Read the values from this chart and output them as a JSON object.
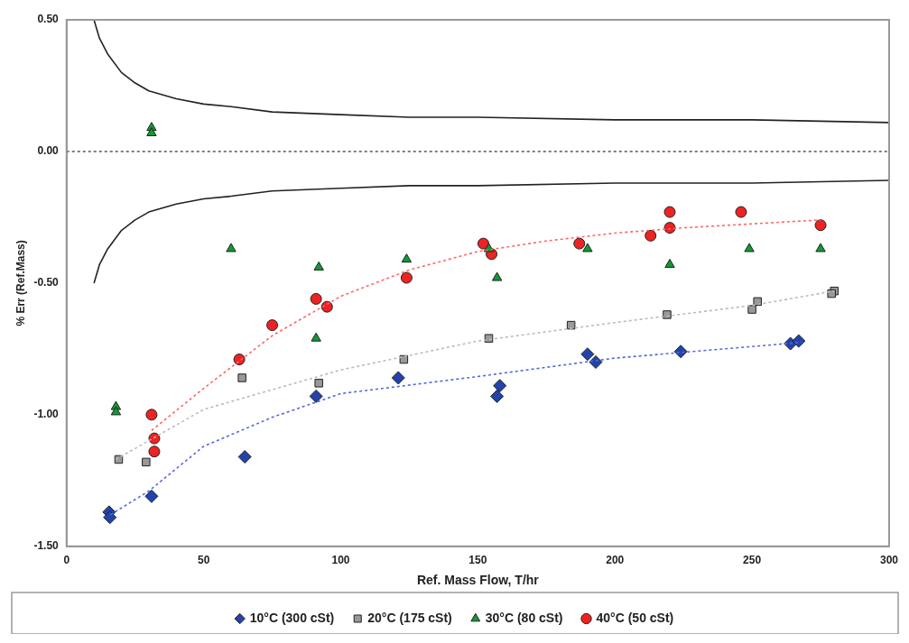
{
  "chart_data": {
    "type": "scatter",
    "xlabel": "Ref. Mass Flow, T/hr",
    "ylabel": "% Err (Ref.Mass)",
    "xlim": [
      0,
      300
    ],
    "xticks": [
      0,
      50,
      100,
      150,
      200,
      250,
      300
    ],
    "ylim": [
      -1.5,
      0.5
    ],
    "yticks": [
      {
        "value": -1.5,
        "label": "-1.50"
      },
      {
        "value": -1.0,
        "label": "-1.00"
      },
      {
        "value": -0.5,
        "label": "-0.50"
      },
      {
        "value": 0,
        "label": "0.00"
      },
      {
        "value": 0.5,
        "label": "0.50"
      }
    ],
    "grid": false,
    "legend": "bottom",
    "ref_lines": [
      {
        "axis": "y",
        "value": 0,
        "color": "#555555",
        "line_style": "dotted"
      }
    ],
    "series": [
      {
        "type": "line",
        "color": "#222222",
        "line_style": "solid",
        "marker": "none",
        "x": [
          10,
          12,
          15,
          20,
          25,
          30,
          40,
          50,
          60,
          75,
          100,
          125,
          150,
          200,
          250,
          300
        ],
        "values": [
          0.5,
          0.43,
          0.37,
          0.3,
          0.26,
          0.23,
          0.2,
          0.18,
          0.17,
          0.15,
          0.14,
          0.13,
          0.13,
          0.12,
          0.12,
          0.11
        ]
      },
      {
        "type": "line",
        "color": "#222222",
        "line_style": "solid",
        "marker": "none",
        "x": [
          10,
          12,
          15,
          20,
          25,
          30,
          40,
          50,
          60,
          75,
          100,
          125,
          150,
          200,
          250,
          300
        ],
        "values": [
          -0.5,
          -0.43,
          -0.37,
          -0.3,
          -0.26,
          -0.23,
          -0.2,
          -0.18,
          -0.17,
          -0.15,
          -0.14,
          -0.13,
          -0.13,
          -0.12,
          -0.12,
          -0.11
        ]
      },
      {
        "type": "line",
        "color": "#5566dd",
        "line_style": "dotted",
        "marker": "none",
        "x": [
          16,
          30,
          50,
          75,
          100,
          150,
          200,
          268
        ],
        "values": [
          -1.38,
          -1.29,
          -1.12,
          -1.01,
          -0.92,
          -0.855,
          -0.785,
          -0.725
        ]
      },
      {
        "type": "line",
        "color": "#bbbbbb",
        "line_style": "dotted",
        "marker": "none",
        "x": [
          18,
          50,
          100,
          150,
          200,
          250,
          280
        ],
        "values": [
          -1.17,
          -0.98,
          -0.83,
          -0.72,
          -0.65,
          -0.585,
          -0.53
        ]
      },
      {
        "type": "line",
        "color": "#ff6666",
        "line_style": "dotted",
        "marker": "none",
        "x": [
          31,
          50,
          75,
          100,
          125,
          150,
          175,
          200,
          225,
          250,
          275
        ],
        "values": [
          -1.06,
          -0.9,
          -0.7,
          -0.55,
          -0.45,
          -0.38,
          -0.34,
          -0.31,
          -0.29,
          -0.275,
          -0.26
        ]
      },
      {
        "name": "10°C (300 cSt)",
        "type": "scatter",
        "marker": "diamond",
        "color": "#2244aa",
        "x": [
          15.5,
          15.8,
          31,
          65,
          91,
          121,
          158,
          157,
          190,
          193,
          224,
          264,
          267
        ],
        "values": [
          -1.37,
          -1.39,
          -1.31,
          -1.16,
          -0.93,
          -0.86,
          -0.89,
          -0.93,
          -0.77,
          -0.8,
          -0.76,
          -0.73,
          -0.72
        ]
      },
      {
        "name": "20°C (175 cSt)",
        "type": "scatter",
        "marker": "square",
        "color": "#999999",
        "x": [
          19,
          29,
          64,
          92,
          123,
          154,
          184,
          219,
          252,
          250,
          280,
          279
        ],
        "values": [
          -1.17,
          -1.18,
          -0.86,
          -0.88,
          -0.79,
          -0.71,
          -0.66,
          -0.62,
          -0.57,
          -0.6,
          -0.53,
          -0.54
        ]
      },
      {
        "name": "30°C (80 cSt)",
        "type": "scatter",
        "marker": "triangle",
        "color": "#119933",
        "x": [
          31,
          31,
          18,
          18,
          60,
          92,
          91,
          124,
          154,
          157,
          190,
          220,
          249,
          275
        ],
        "values": [
          0.09,
          0.07,
          -0.97,
          -0.99,
          -0.37,
          -0.44,
          -0.71,
          -0.41,
          -0.37,
          -0.48,
          -0.37,
          -0.43,
          -0.37,
          -0.37
        ]
      },
      {
        "name": "40°C (50 cSt)",
        "type": "scatter",
        "marker": "circle",
        "color": "#ee2222",
        "x": [
          31,
          32,
          32,
          63,
          75,
          91,
          95,
          124,
          152,
          155,
          187,
          213,
          220,
          220,
          246,
          275
        ],
        "values": [
          -1.0,
          -1.09,
          -1.14,
          -0.79,
          -0.66,
          -0.56,
          -0.59,
          -0.48,
          -0.35,
          -0.39,
          -0.35,
          -0.32,
          -0.23,
          -0.29,
          -0.23,
          -0.28
        ]
      }
    ]
  }
}
